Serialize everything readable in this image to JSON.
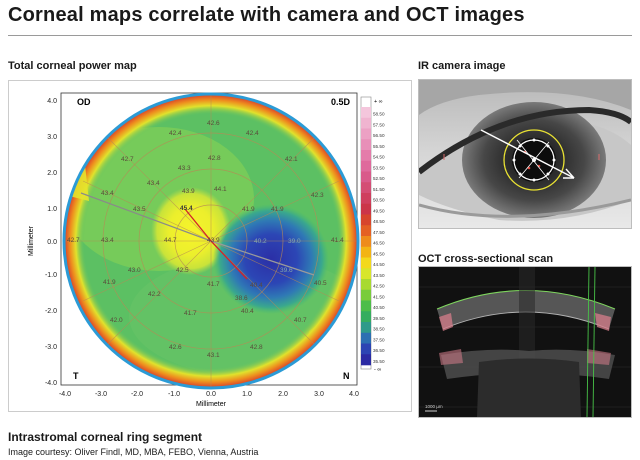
{
  "header": {
    "title": "Corneal maps correlate with camera and OCT images"
  },
  "map": {
    "label": "Total corneal power map",
    "eye_label": "OD",
    "step_label": "0.5D",
    "temporal_label": "T",
    "nasal_label": "N",
    "x_axis_label": "Millimeter",
    "y_axis_label": "Millimeter",
    "x_ticks": [
      "-4.0",
      "-3.0",
      "-2.0",
      "-1.0",
      "0.0",
      "1.0",
      "2.0",
      "3.0",
      "4.0"
    ],
    "y_ticks": [
      "4.0",
      "3.0",
      "2.0",
      "1.0",
      "0.0",
      "-1.0",
      "-2.0",
      "-3.0",
      "-4.0"
    ],
    "scale_top_symbol": "+ ∞",
    "scale_bottom_symbol": "- ∞",
    "scale_values": [
      "58.50",
      "57.50",
      "56.50",
      "55.50",
      "54.50",
      "53.50",
      "52.50",
      "51.50",
      "50.50",
      "49.50",
      "48.50",
      "47.50",
      "46.50",
      "45.50",
      "44.50",
      "43.50",
      "42.50",
      "41.50",
      "40.50",
      "39.50",
      "38.50",
      "37.50",
      "36.50",
      "35.50"
    ],
    "scale_colors": [
      "#f4c6dc",
      "#f0b4d0",
      "#eca1c4",
      "#e88fb8",
      "#e47caa",
      "#df6a9c",
      "#d95a8a",
      "#d44d74",
      "#cf3f5e",
      "#cb3549",
      "#d7452d",
      "#e46024",
      "#ee8b1b",
      "#f3b414",
      "#f3d91c",
      "#d7e62a",
      "#a8da2f",
      "#79cc3b",
      "#4dbd49",
      "#35ad5f",
      "#2e9a8a",
      "#2c6fb2",
      "#2c44b3",
      "#2b2aa3"
    ],
    "values": [
      "42.4",
      "42.6",
      "42.4",
      "42.7",
      "43.3",
      "42.8",
      "42.1",
      "43.4",
      "43.4",
      "43.9",
      "44.1",
      "41.9",
      "42.3",
      "45.4",
      "43.5",
      "41.9",
      "42.7",
      "43.4",
      "44.7",
      "43.9",
      "40.2",
      "39.0",
      "41.4",
      "43.0",
      "42.5",
      "41.7",
      "40.4",
      "39.6",
      "38.6",
      "40.5",
      "41.9",
      "42.2",
      "41.7",
      "40.4",
      "40.7",
      "42.0",
      "42.6",
      "43.1",
      "42.8"
    ]
  },
  "camera": {
    "label": "IR camera image"
  },
  "oct": {
    "label": "OCT cross-sectional scan",
    "scalebar_label": "1000 µm"
  },
  "footer": {
    "title": "Intrastromal corneal ring segment",
    "credit": "Image courtesy: Oliver Findl, MD, MBA, FEBO, Vienna, Austria"
  }
}
